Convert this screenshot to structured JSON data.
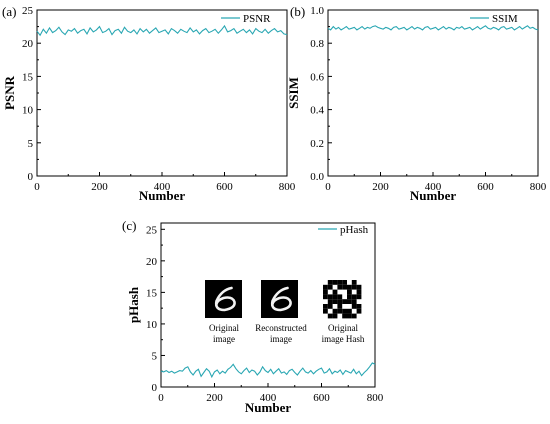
{
  "colors": {
    "series": "#2AA7B3",
    "axis": "#000000",
    "background": "#ffffff"
  },
  "chart_data": [
    {
      "type": "line",
      "panel_label": "(a)",
      "xlabel": "Number",
      "ylabel": "PSNR",
      "xlim": [
        0,
        800
      ],
      "ylim": [
        0,
        25
      ],
      "xticks": [
        0,
        200,
        400,
        600,
        800
      ],
      "yticks": [
        0,
        5,
        10,
        15,
        20,
        25
      ],
      "grid": false,
      "legend_position": "top-right",
      "series": [
        {
          "name": "PSNR",
          "x": [
            0,
            10,
            20,
            30,
            40,
            50,
            60,
            70,
            80,
            90,
            100,
            110,
            120,
            130,
            140,
            150,
            160,
            170,
            180,
            190,
            200,
            210,
            220,
            230,
            240,
            250,
            260,
            270,
            280,
            290,
            300,
            310,
            320,
            330,
            340,
            350,
            360,
            370,
            380,
            390,
            400,
            410,
            420,
            430,
            440,
            450,
            460,
            470,
            480,
            490,
            500,
            510,
            520,
            530,
            540,
            550,
            560,
            570,
            580,
            590,
            600,
            610,
            620,
            630,
            640,
            650,
            660,
            670,
            680,
            690,
            700,
            710,
            720,
            730,
            740,
            750,
            760,
            770,
            780,
            790,
            800
          ],
          "y": [
            21.8,
            21.2,
            22.1,
            21.5,
            22.3,
            21.6,
            21.9,
            22.4,
            21.7,
            21.3,
            22.0,
            21.8,
            22.2,
            21.5,
            21.9,
            22.1,
            21.4,
            22.3,
            21.7,
            22.0,
            22.5,
            21.6,
            21.8,
            22.2,
            21.3,
            21.9,
            22.1,
            21.5,
            22.4,
            21.8,
            21.6,
            22.0,
            21.4,
            22.2,
            21.7,
            22.1,
            21.5,
            21.9,
            22.3,
            21.6,
            21.8,
            22.0,
            21.4,
            22.2,
            21.9,
            21.5,
            22.1,
            21.8,
            21.6,
            22.3,
            21.7,
            22.0,
            21.4,
            21.9,
            22.2,
            21.6,
            21.8,
            22.1,
            21.5,
            22.0,
            22.6,
            21.7,
            21.9,
            22.2,
            21.5,
            21.8,
            22.1,
            21.6,
            22.0,
            21.4,
            22.2,
            21.8,
            21.6,
            22.1,
            21.5,
            21.9,
            22.2,
            21.7,
            21.9,
            21.4,
            21.3
          ]
        }
      ]
    },
    {
      "type": "line",
      "panel_label": "(b)",
      "xlabel": "Number",
      "ylabel": "SSIM",
      "xlim": [
        0,
        800
      ],
      "ylim": [
        0,
        1.0
      ],
      "xticks": [
        0,
        200,
        400,
        600,
        800
      ],
      "yticks": [
        0.0,
        0.2,
        0.4,
        0.6,
        0.8,
        1.0
      ],
      "ytick_labels": [
        "0.0",
        "0.2",
        "0.4",
        "0.6",
        "0.8",
        "1.0"
      ],
      "grid": false,
      "legend_position": "top-right",
      "series": [
        {
          "name": "SSIM",
          "x": [
            0,
            10,
            20,
            30,
            40,
            50,
            60,
            70,
            80,
            90,
            100,
            110,
            120,
            130,
            140,
            150,
            160,
            170,
            180,
            190,
            200,
            210,
            220,
            230,
            240,
            250,
            260,
            270,
            280,
            290,
            300,
            310,
            320,
            330,
            340,
            350,
            360,
            370,
            380,
            390,
            400,
            410,
            420,
            430,
            440,
            450,
            460,
            470,
            480,
            490,
            500,
            510,
            520,
            530,
            540,
            550,
            560,
            570,
            580,
            590,
            600,
            610,
            620,
            630,
            640,
            650,
            660,
            670,
            680,
            690,
            700,
            710,
            720,
            730,
            740,
            750,
            760,
            770,
            780,
            790,
            800
          ],
          "y": [
            0.89,
            0.88,
            0.9,
            0.885,
            0.895,
            0.88,
            0.89,
            0.9,
            0.885,
            0.89,
            0.895,
            0.88,
            0.89,
            0.9,
            0.885,
            0.895,
            0.89,
            0.9,
            0.905,
            0.895,
            0.89,
            0.885,
            0.895,
            0.89,
            0.88,
            0.895,
            0.9,
            0.885,
            0.89,
            0.895,
            0.88,
            0.89,
            0.9,
            0.885,
            0.895,
            0.89,
            0.88,
            0.895,
            0.9,
            0.885,
            0.89,
            0.895,
            0.88,
            0.89,
            0.9,
            0.885,
            0.895,
            0.89,
            0.88,
            0.895,
            0.89,
            0.9,
            0.885,
            0.89,
            0.895,
            0.88,
            0.89,
            0.9,
            0.885,
            0.895,
            0.905,
            0.89,
            0.885,
            0.895,
            0.89,
            0.88,
            0.895,
            0.9,
            0.885,
            0.89,
            0.895,
            0.88,
            0.89,
            0.9,
            0.885,
            0.895,
            0.905,
            0.89,
            0.895,
            0.885,
            0.88
          ]
        }
      ]
    },
    {
      "type": "line",
      "panel_label": "(c)",
      "xlabel": "Number",
      "ylabel": "pHash",
      "xlim": [
        0,
        800
      ],
      "ylim": [
        0,
        26
      ],
      "xticks": [
        0,
        200,
        400,
        600,
        800
      ],
      "yticks": [
        0,
        5,
        10,
        15,
        20,
        25
      ],
      "grid": false,
      "legend_position": "top-right",
      "series": [
        {
          "name": "pHash",
          "x": [
            0,
            10,
            20,
            30,
            40,
            50,
            60,
            70,
            80,
            90,
            100,
            110,
            120,
            130,
            140,
            150,
            160,
            170,
            180,
            190,
            200,
            210,
            220,
            230,
            240,
            250,
            260,
            270,
            280,
            290,
            300,
            310,
            320,
            330,
            340,
            350,
            360,
            370,
            380,
            390,
            400,
            410,
            420,
            430,
            440,
            450,
            460,
            470,
            480,
            490,
            500,
            510,
            520,
            530,
            540,
            550,
            560,
            570,
            580,
            590,
            600,
            610,
            620,
            630,
            640,
            650,
            660,
            670,
            680,
            690,
            700,
            710,
            720,
            730,
            740,
            750,
            760,
            770,
            780,
            790,
            800
          ],
          "y": [
            2.5,
            2.4,
            2.6,
            2.3,
            2.5,
            2.2,
            2.4,
            2.6,
            2.5,
            3.0,
            3.2,
            2.4,
            1.9,
            2.5,
            2.8,
            1.7,
            2.3,
            2.9,
            2.5,
            1.6,
            2.4,
            2.7,
            2.1,
            2.5,
            2.2,
            2.8,
            3.1,
            3.6,
            2.9,
            2.4,
            2.1,
            2.6,
            3.0,
            2.3,
            2.7,
            2.5,
            1.9,
            2.4,
            3.2,
            2.6,
            2.3,
            2.8,
            2.1,
            2.5,
            2.9,
            2.2,
            2.4,
            2.0,
            2.6,
            2.8,
            2.3,
            1.9,
            2.5,
            3.0,
            2.4,
            2.2,
            2.6,
            2.1,
            2.5,
            2.8,
            3.0,
            2.2,
            2.4,
            2.9,
            2.1,
            2.5,
            2.3,
            2.7,
            2.0,
            2.6,
            2.4,
            2.2,
            2.8,
            2.1,
            2.5,
            1.8,
            2.3,
            2.7,
            3.2,
            3.8,
            3.6
          ]
        }
      ],
      "inset_captions": [
        [
          "Original",
          "image"
        ],
        [
          "Reconstructed",
          "image"
        ],
        [
          "Original",
          "image Hash"
        ]
      ]
    }
  ]
}
